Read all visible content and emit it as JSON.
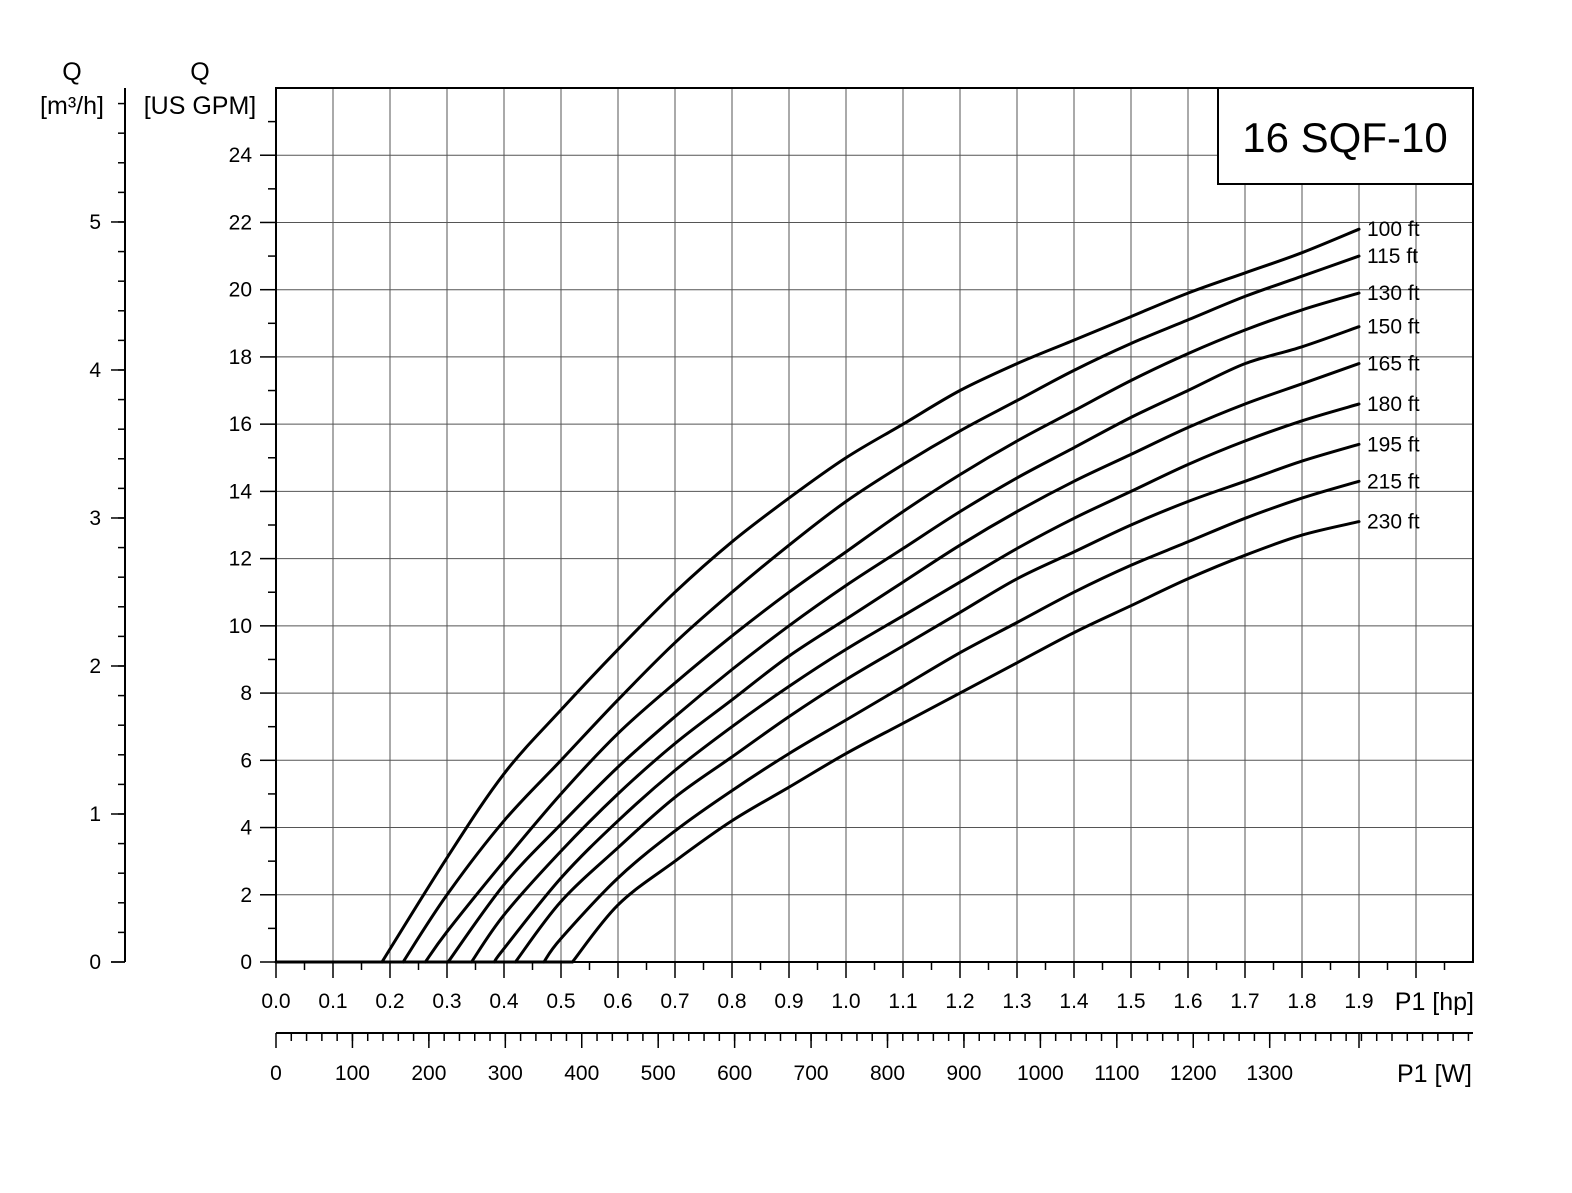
{
  "chart_data": {
    "type": "line",
    "title": "16 SQF-10",
    "x_primary": {
      "label": "P1 [hp]",
      "range": [
        0,
        2.1
      ],
      "ticks": [
        "0.0",
        "0.1",
        "0.2",
        "0.3",
        "0.4",
        "0.5",
        "0.6",
        "0.7",
        "0.8",
        "0.9",
        "1.0",
        "1.1",
        "1.2",
        "1.3",
        "1.4",
        "1.5",
        "1.6",
        "1.7",
        "1.8",
        "1.9"
      ]
    },
    "x_secondary": {
      "label": "P1 [W]",
      "ticks": [
        "0",
        "100",
        "200",
        "300",
        "400",
        "500",
        "600",
        "700",
        "800",
        "900",
        "1000",
        "1100",
        "1200",
        "1300"
      ]
    },
    "y_primary": {
      "label_top": "Q",
      "label_unit": "[US GPM]",
      "range": [
        0,
        26
      ],
      "ticks": [
        "0",
        "2",
        "4",
        "6",
        "8",
        "10",
        "12",
        "14",
        "16",
        "18",
        "20",
        "22",
        "24"
      ]
    },
    "y_secondary": {
      "label_top": "Q",
      "label_unit": "[m³/h]",
      "ticks": [
        "0",
        "1",
        "2",
        "3",
        "4",
        "5"
      ]
    },
    "grid": true,
    "series": [
      {
        "name": "100 ft",
        "points": [
          [
            0.186,
            0
          ],
          [
            0.3,
            3.1
          ],
          [
            0.4,
            5.6
          ],
          [
            0.5,
            7.5
          ],
          [
            0.6,
            9.3
          ],
          [
            0.7,
            11.0
          ],
          [
            0.8,
            12.5
          ],
          [
            0.9,
            13.8
          ],
          [
            1.0,
            15.0
          ],
          [
            1.1,
            16.0
          ],
          [
            1.2,
            17.0
          ],
          [
            1.3,
            17.8
          ],
          [
            1.4,
            18.5
          ],
          [
            1.5,
            19.2
          ],
          [
            1.6,
            19.9
          ],
          [
            1.7,
            20.5
          ],
          [
            1.8,
            21.1
          ],
          [
            1.9,
            21.8
          ]
        ]
      },
      {
        "name": "115 ft",
        "points": [
          [
            0.223,
            0
          ],
          [
            0.3,
            2.0
          ],
          [
            0.4,
            4.2
          ],
          [
            0.5,
            6.0
          ],
          [
            0.6,
            7.8
          ],
          [
            0.7,
            9.5
          ],
          [
            0.8,
            11.0
          ],
          [
            0.9,
            12.4
          ],
          [
            1.0,
            13.7
          ],
          [
            1.1,
            14.8
          ],
          [
            1.2,
            15.8
          ],
          [
            1.3,
            16.7
          ],
          [
            1.4,
            17.6
          ],
          [
            1.5,
            18.4
          ],
          [
            1.6,
            19.1
          ],
          [
            1.7,
            19.8
          ],
          [
            1.8,
            20.4
          ],
          [
            1.9,
            21.0
          ]
        ]
      },
      {
        "name": "130 ft",
        "points": [
          [
            0.262,
            0
          ],
          [
            0.3,
            0.9
          ],
          [
            0.4,
            3.0
          ],
          [
            0.5,
            5.0
          ],
          [
            0.6,
            6.8
          ],
          [
            0.7,
            8.3
          ],
          [
            0.8,
            9.7
          ],
          [
            0.9,
            11.0
          ],
          [
            1.0,
            12.2
          ],
          [
            1.1,
            13.4
          ],
          [
            1.2,
            14.5
          ],
          [
            1.3,
            15.5
          ],
          [
            1.4,
            16.4
          ],
          [
            1.5,
            17.3
          ],
          [
            1.6,
            18.1
          ],
          [
            1.7,
            18.8
          ],
          [
            1.8,
            19.4
          ],
          [
            1.9,
            19.9
          ]
        ]
      },
      {
        "name": "150 ft",
        "points": [
          [
            0.302,
            0
          ],
          [
            0.4,
            2.3
          ],
          [
            0.5,
            4.1
          ],
          [
            0.6,
            5.8
          ],
          [
            0.7,
            7.3
          ],
          [
            0.8,
            8.7
          ],
          [
            0.9,
            10.0
          ],
          [
            1.0,
            11.2
          ],
          [
            1.1,
            12.3
          ],
          [
            1.2,
            13.4
          ],
          [
            1.3,
            14.4
          ],
          [
            1.4,
            15.3
          ],
          [
            1.5,
            16.2
          ],
          [
            1.6,
            17.0
          ],
          [
            1.7,
            17.8
          ],
          [
            1.8,
            18.3
          ],
          [
            1.9,
            18.9
          ]
        ]
      },
      {
        "name": "165 ft",
        "points": [
          [
            0.343,
            0
          ],
          [
            0.4,
            1.4
          ],
          [
            0.5,
            3.3
          ],
          [
            0.6,
            5.0
          ],
          [
            0.7,
            6.5
          ],
          [
            0.8,
            7.8
          ],
          [
            0.9,
            9.1
          ],
          [
            1.0,
            10.2
          ],
          [
            1.1,
            11.3
          ],
          [
            1.2,
            12.4
          ],
          [
            1.3,
            13.4
          ],
          [
            1.4,
            14.3
          ],
          [
            1.5,
            15.1
          ],
          [
            1.6,
            15.9
          ],
          [
            1.7,
            16.6
          ],
          [
            1.8,
            17.2
          ],
          [
            1.9,
            17.8
          ]
        ]
      },
      {
        "name": "180 ft",
        "points": [
          [
            0.383,
            0
          ],
          [
            0.4,
            0.4
          ],
          [
            0.5,
            2.5
          ],
          [
            0.6,
            4.2
          ],
          [
            0.7,
            5.7
          ],
          [
            0.8,
            7.0
          ],
          [
            0.9,
            8.2
          ],
          [
            1.0,
            9.3
          ],
          [
            1.1,
            10.3
          ],
          [
            1.2,
            11.3
          ],
          [
            1.3,
            12.3
          ],
          [
            1.4,
            13.2
          ],
          [
            1.5,
            14.0
          ],
          [
            1.6,
            14.8
          ],
          [
            1.7,
            15.5
          ],
          [
            1.8,
            16.1
          ],
          [
            1.9,
            16.6
          ]
        ]
      },
      {
        "name": "195 ft",
        "points": [
          [
            0.42,
            0
          ],
          [
            0.5,
            1.8
          ],
          [
            0.6,
            3.4
          ],
          [
            0.7,
            4.9
          ],
          [
            0.8,
            6.1
          ],
          [
            0.9,
            7.3
          ],
          [
            1.0,
            8.4
          ],
          [
            1.1,
            9.4
          ],
          [
            1.2,
            10.4
          ],
          [
            1.3,
            11.4
          ],
          [
            1.4,
            12.2
          ],
          [
            1.5,
            13.0
          ],
          [
            1.6,
            13.7
          ],
          [
            1.7,
            14.3
          ],
          [
            1.8,
            14.9
          ],
          [
            1.9,
            15.4
          ]
        ]
      },
      {
        "name": "215 ft",
        "points": [
          [
            0.47,
            0
          ],
          [
            0.5,
            0.7
          ],
          [
            0.6,
            2.5
          ],
          [
            0.7,
            3.9
          ],
          [
            0.8,
            5.1
          ],
          [
            0.9,
            6.2
          ],
          [
            1.0,
            7.2
          ],
          [
            1.1,
            8.2
          ],
          [
            1.2,
            9.2
          ],
          [
            1.3,
            10.1
          ],
          [
            1.4,
            11.0
          ],
          [
            1.5,
            11.8
          ],
          [
            1.6,
            12.5
          ],
          [
            1.7,
            13.2
          ],
          [
            1.8,
            13.8
          ],
          [
            1.9,
            14.3
          ]
        ]
      },
      {
        "name": "230 ft",
        "points": [
          [
            0.52,
            0
          ],
          [
            0.6,
            1.7
          ],
          [
            0.7,
            3.0
          ],
          [
            0.8,
            4.2
          ],
          [
            0.9,
            5.2
          ],
          [
            1.0,
            6.2
          ],
          [
            1.1,
            7.1
          ],
          [
            1.2,
            8.0
          ],
          [
            1.3,
            8.9
          ],
          [
            1.4,
            9.8
          ],
          [
            1.5,
            10.6
          ],
          [
            1.6,
            11.4
          ],
          [
            1.7,
            12.1
          ],
          [
            1.8,
            12.7
          ],
          [
            1.9,
            13.1
          ]
        ]
      }
    ]
  }
}
